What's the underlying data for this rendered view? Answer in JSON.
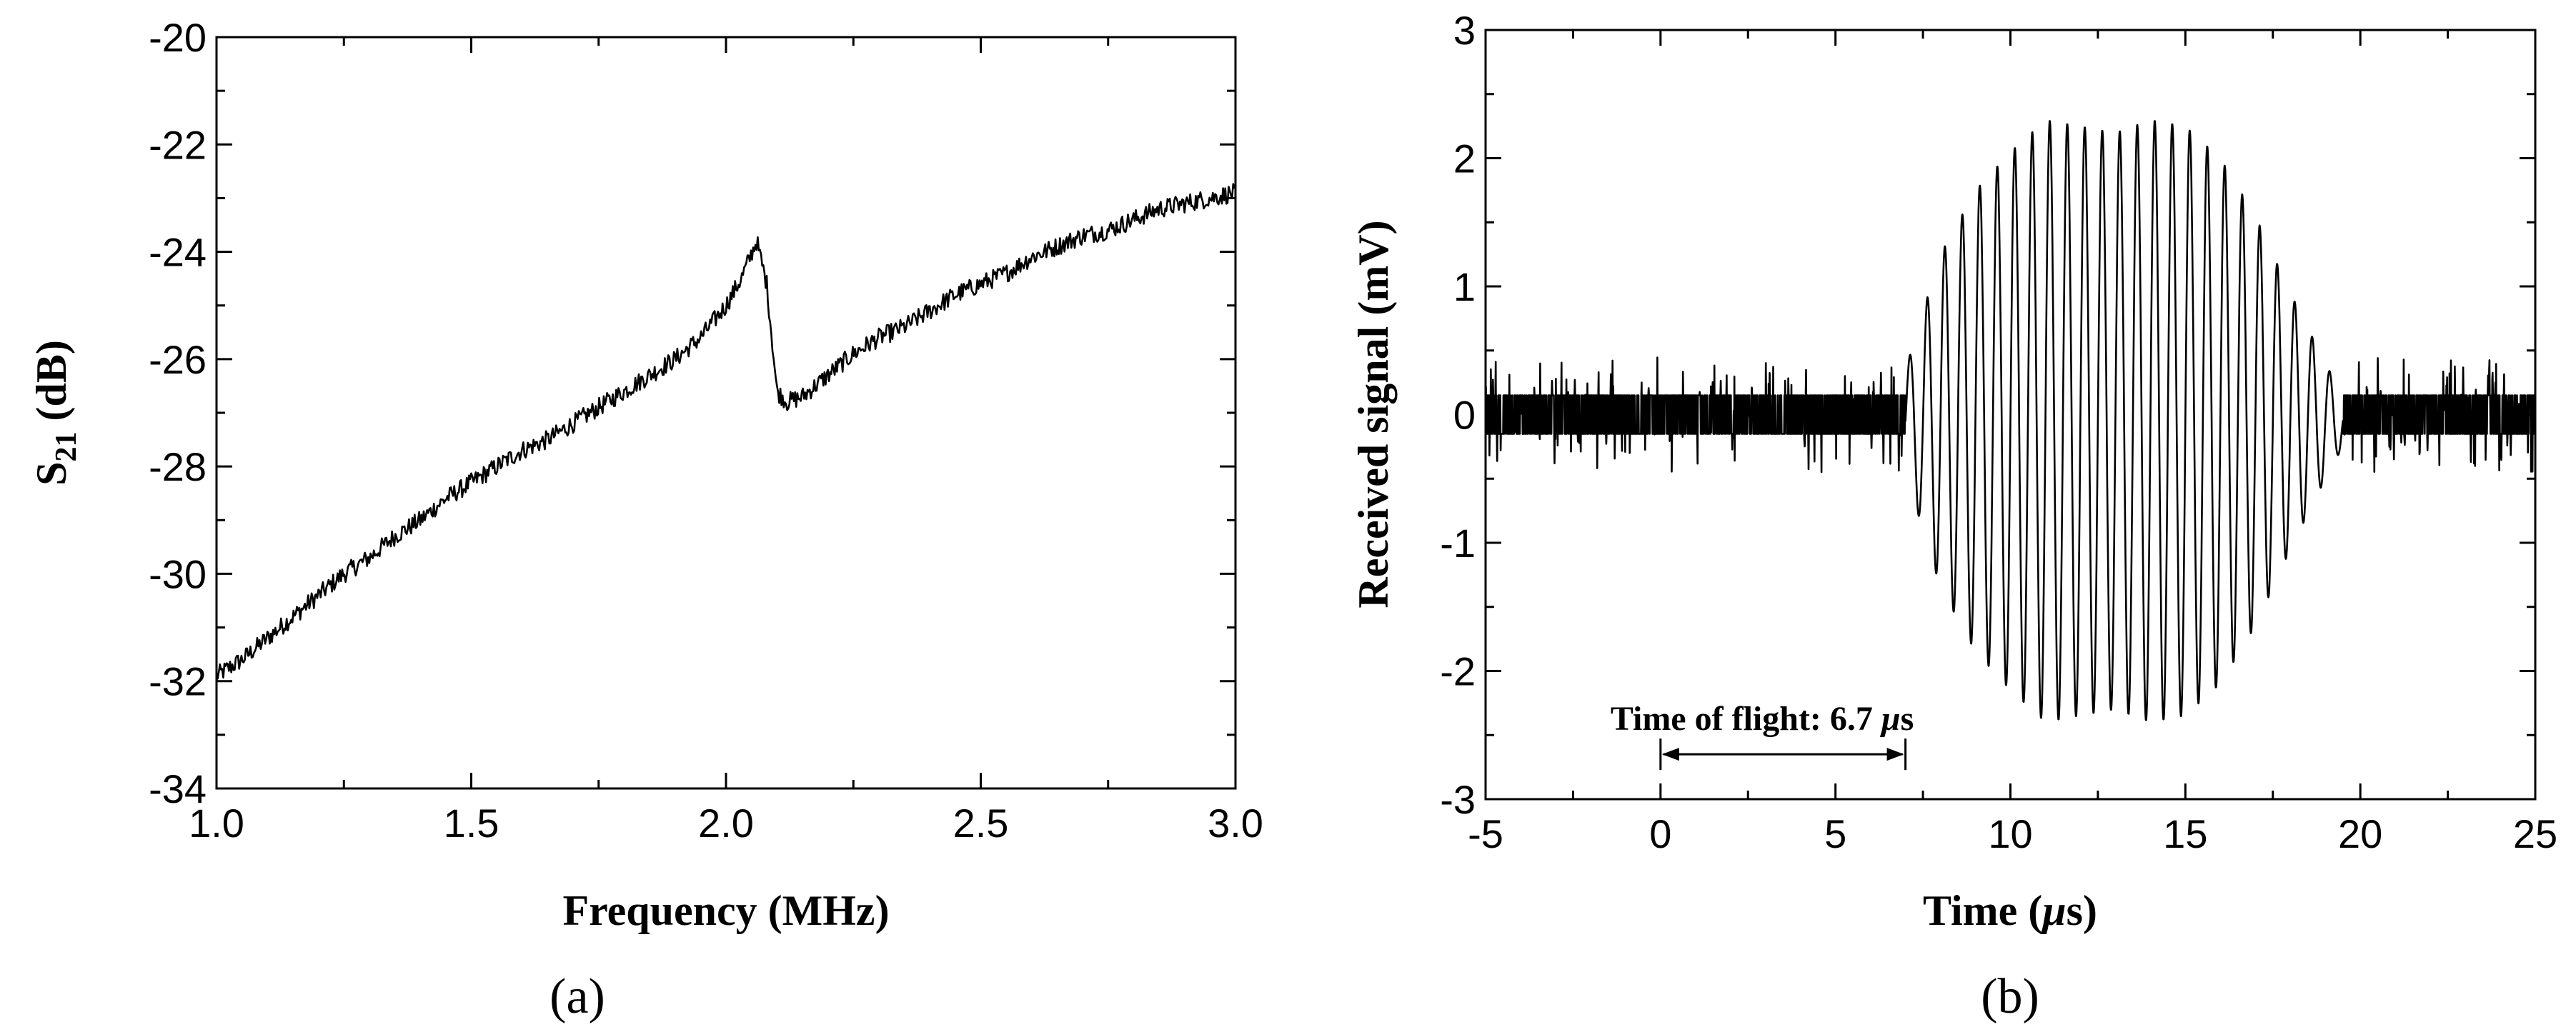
{
  "chart_data": [
    {
      "type": "line",
      "panel_label": "(a)",
      "title": "",
      "xlabel": "Frequency (MHz)",
      "ylabel_main": "S",
      "ylabel_sub": "21",
      "ylabel_unit": " (dB)",
      "xlim": [
        1.0,
        3.0
      ],
      "ylim": [
        -34,
        -20
      ],
      "xticks": [
        1.0,
        1.5,
        2.0,
        2.5,
        3.0
      ],
      "xtick_labels": [
        "1.0",
        "1.5",
        "2.0",
        "2.5",
        "3.0"
      ],
      "xminor": [
        1.25,
        1.75,
        2.25,
        2.75
      ],
      "yticks": [
        -34,
        -32,
        -30,
        -28,
        -26,
        -24,
        -22,
        -20
      ],
      "ytick_labels": [
        "-34",
        "-32",
        "-30",
        "-28",
        "-26",
        "-24",
        "-22",
        "-20"
      ],
      "yminor": [
        -33,
        -31,
        -29,
        -27,
        -25,
        -23,
        -21
      ],
      "grid": false,
      "series": [
        {
          "x": [
            1.0,
            1.05,
            1.1,
            1.15,
            1.2,
            1.25,
            1.3,
            1.35,
            1.4,
            1.45,
            1.5,
            1.55,
            1.6,
            1.65,
            1.7,
            1.75,
            1.8,
            1.85,
            1.9,
            1.95,
            2.0,
            2.03,
            2.06,
            2.08,
            2.1,
            2.12,
            2.15,
            2.2,
            2.25,
            2.3,
            2.35,
            2.4,
            2.45,
            2.5,
            2.55,
            2.6,
            2.65,
            2.7,
            2.75,
            2.8,
            2.85,
            2.9,
            2.95,
            3.0
          ],
          "y": [
            -31.9,
            -31.6,
            -31.2,
            -30.8,
            -30.4,
            -30.0,
            -29.7,
            -29.3,
            -29.0,
            -28.6,
            -28.3,
            -28.0,
            -27.7,
            -27.5,
            -27.2,
            -26.9,
            -26.6,
            -26.3,
            -26.0,
            -25.6,
            -25.0,
            -24.5,
            -23.8,
            -24.6,
            -26.6,
            -26.8,
            -26.7,
            -26.3,
            -25.9,
            -25.6,
            -25.4,
            -25.1,
            -24.8,
            -24.6,
            -24.4,
            -24.1,
            -23.9,
            -23.7,
            -23.6,
            -23.4,
            -23.2,
            -23.1,
            -23.0,
            -22.9
          ]
        }
      ]
    },
    {
      "type": "line",
      "panel_label": "(b)",
      "title": "",
      "xlabel_pre": "Time (",
      "xlabel_mu": "μ",
      "xlabel_post": "s)",
      "ylabel": "Received signal (mV)",
      "xlim": [
        -5,
        25
      ],
      "ylim": [
        -3,
        3
      ],
      "xticks": [
        -5,
        0,
        5,
        10,
        15,
        20,
        25
      ],
      "xtick_labels": [
        "-5",
        "0",
        "5",
        "10",
        "15",
        "20",
        "25"
      ],
      "xminor": [
        -2.5,
        2.5,
        7.5,
        12.5,
        17.5,
        22.5
      ],
      "yticks": [
        -3,
        -2,
        -1,
        0,
        1,
        2,
        3
      ],
      "ytick_labels": [
        "-3",
        "-2",
        "-1",
        "0",
        "1",
        "2",
        "3"
      ],
      "yminor": [
        -2.5,
        -1.5,
        -0.5,
        0.5,
        1.5,
        2.5
      ],
      "grid": false,
      "signal": {
        "noise_level_mV": 0.15,
        "burst_start_us": 7.0,
        "burst_end_us": 19.5,
        "frequency_MHz": 2.0,
        "envelope_t": [
          7.0,
          8.0,
          9.0,
          10.0,
          11.0,
          12.0,
          13.0,
          14.0,
          15.0,
          16.0,
          17.0,
          18.0,
          19.0,
          19.5
        ],
        "envelope_mV": [
          0.4,
          1.3,
          1.8,
          2.1,
          2.35,
          2.3,
          2.25,
          2.35,
          2.3,
          2.05,
          1.6,
          1.0,
          0.45,
          0.2
        ]
      },
      "annotation": {
        "text_pre": "Time of flight: 6.7 ",
        "text_mu": "μ",
        "text_post": "s",
        "x_start": 0,
        "x_end": 7.0,
        "y": -2.65
      }
    }
  ]
}
